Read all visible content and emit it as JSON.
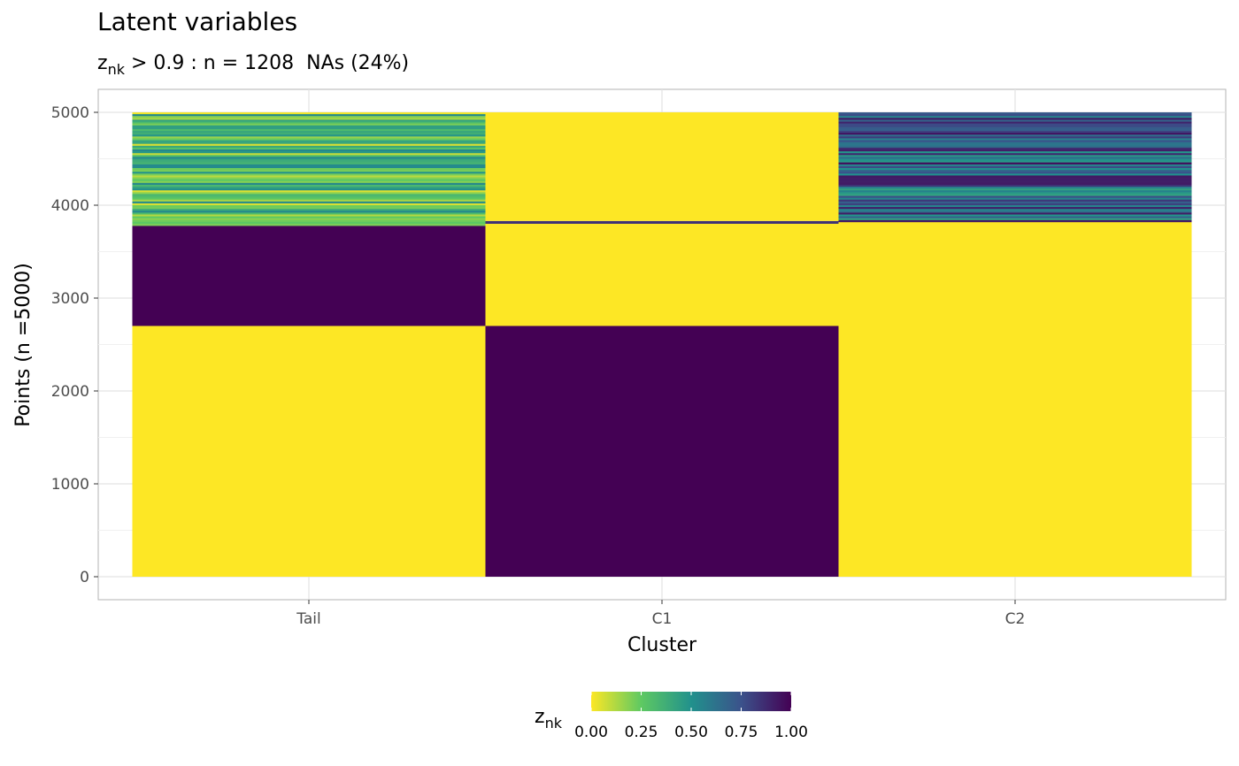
{
  "chart_data": {
    "type": "heatmap",
    "title": "Latent variables",
    "subtitle": {
      "symbol": "z",
      "subscript": "nk",
      "text": " > 0.9 : n = 1208  NAs (24%)"
    },
    "xlabel": "Cluster",
    "ylabel": "Points (n =5000)",
    "categories": [
      "Tail",
      "C1",
      "C2"
    ],
    "ylim": [
      0,
      5000
    ],
    "yticks": [
      0,
      1000,
      2000,
      3000,
      4000,
      5000
    ],
    "grid": true,
    "colorscale": {
      "name": "viridis",
      "reversed": true,
      "stops": [
        "#fde725",
        "#5ec962",
        "#21918c",
        "#3b528b",
        "#440154"
      ],
      "domain": [
        0,
        1
      ],
      "ticks": [
        "0.00",
        "0.25",
        "0.50",
        "0.75",
        "1.00"
      ]
    },
    "legend": {
      "position": "bottom",
      "title_symbol": "z",
      "title_subscript": "nk"
    },
    "blocks": [
      {
        "cluster": "Tail",
        "from": 0,
        "to": 2700,
        "z": 0.0
      },
      {
        "cluster": "Tail",
        "from": 2700,
        "to": 3780,
        "z": 1.0
      },
      {
        "cluster": "Tail",
        "from": 3780,
        "to": 5000,
        "z": 0.3,
        "striped": true
      },
      {
        "cluster": "C1",
        "from": 0,
        "to": 2700,
        "z": 1.0
      },
      {
        "cluster": "C1",
        "from": 2700,
        "to": 3800,
        "z": 0.0
      },
      {
        "cluster": "C1",
        "from": 3800,
        "to": 3830,
        "z": 0.85
      },
      {
        "cluster": "C1",
        "from": 3830,
        "to": 5000,
        "z": 0.0
      },
      {
        "cluster": "C2",
        "from": 0,
        "to": 3820,
        "z": 0.0
      },
      {
        "cluster": "C2",
        "from": 3820,
        "to": 5000,
        "z": 0.7,
        "striped": true
      }
    ]
  }
}
